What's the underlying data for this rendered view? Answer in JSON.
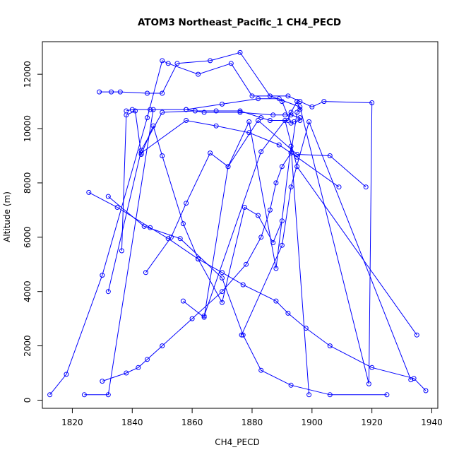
{
  "chart_data": {
    "type": "line",
    "title": "ATOM3 Northeast_Pacific_1 CH4_PECD",
    "xlabel": "CH4_PECD",
    "ylabel": "Altitude (m)",
    "xlim": [
      1810,
      1942
    ],
    "ylim": [
      -300,
      13200
    ],
    "x_ticks": [
      1820,
      1840,
      1860,
      1880,
      1900,
      1920,
      1940
    ],
    "y_ticks": [
      0,
      2000,
      4000,
      6000,
      8000,
      10000,
      12000
    ],
    "grid": false,
    "legend": "none",
    "series_color": "#0000ff",
    "marker": "open-circle",
    "series": [
      {
        "x": [
          1812.5,
          1818,
          1830,
          1845,
          1850,
          1852,
          1862,
          1873,
          1880,
          1892,
          1896,
          1900,
          1904,
          1920,
          1919,
          1896,
          1886,
          1876,
          1866,
          1855,
          1850,
          1845,
          1836,
          1829,
          1833
        ],
        "y": [
          200,
          950,
          4600,
          10400,
          12500,
          12400,
          12000,
          12400,
          11200,
          11200,
          11000,
          10800,
          11000,
          10950,
          600,
          10800,
          11200,
          12800,
          12500,
          12400,
          11300,
          11300,
          11350,
          11350,
          11350
        ]
      },
      {
        "x": [
          1824,
          1832,
          1847,
          1858,
          1864,
          1876,
          1887,
          1891,
          1893,
          1896,
          1896,
          1894,
          1893,
          1890,
          1889,
          1882,
          1870,
          1858,
          1846,
          1840,
          1838
        ],
        "y": [
          200,
          200,
          10700,
          10700,
          10600,
          10600,
          10500,
          10500,
          10500,
          10400,
          10300,
          10250,
          10200,
          11000,
          11100,
          11100,
          10900,
          10700,
          10700,
          10700,
          10650
        ]
      },
      {
        "x": [
          1832,
          1843,
          1850,
          1861,
          1868,
          1876,
          1883,
          1886,
          1892,
          1893,
          1895,
          1896,
          1895,
          1893,
          1890,
          1888,
          1886,
          1883,
          1878,
          1870,
          1860,
          1850,
          1845,
          1842,
          1838,
          1830
        ],
        "y": [
          4000,
          9200,
          10600,
          10650,
          10650,
          10650,
          10400,
          10300,
          10300,
          10600,
          11000,
          10700,
          10600,
          9100,
          8600,
          8000,
          7000,
          6000,
          5000,
          4000,
          3000,
          2000,
          1500,
          1200,
          1000,
          700
        ]
      },
      {
        "x": [
          1825.5,
          1835,
          1846,
          1852,
          1862,
          1870,
          1877,
          1888,
          1892,
          1898,
          1906,
          1920,
          1934,
          1938
        ],
        "y": [
          7650,
          7100,
          6350,
          5950,
          5200,
          4700,
          4250,
          3650,
          3200,
          2650,
          2000,
          1200,
          800,
          350
        ]
      },
      {
        "x": [
          1832,
          1844,
          1856,
          1870,
          1877,
          1883,
          1893,
          1906,
          1925
        ],
        "y": [
          7500,
          6400,
          5950,
          4500,
          2400,
          1100,
          550,
          200,
          200
        ]
      },
      {
        "x": [
          1836.5,
          1838,
          1841,
          1843,
          1847,
          1850,
          1857,
          1862,
          1870,
          1877.5,
          1882,
          1887,
          1890
        ],
        "y": [
          5500,
          10500,
          10650,
          9050,
          10100,
          9000,
          6500,
          5200,
          3600,
          7100,
          6800,
          5800,
          6600
        ]
      },
      {
        "x": [
          1844.5,
          1853,
          1858,
          1866,
          1872,
          1879,
          1888,
          1893,
          1899
        ],
        "y": [
          4700,
          6000,
          7250,
          9100,
          8600,
          10250,
          4850,
          9350,
          200
        ]
      },
      {
        "x": [
          1857,
          1864,
          1872,
          1882,
          1895,
          1906,
          1918
        ],
        "y": [
          3650,
          3050,
          8600,
          10300,
          9050,
          9000,
          7850
        ]
      },
      {
        "x": [
          1843,
          1858,
          1868,
          1879,
          1889,
          1895,
          1909
        ],
        "y": [
          9100,
          10300,
          10100,
          9850,
          9400,
          8950,
          7850
        ]
      },
      {
        "x": [
          1864,
          1883,
          1891,
          1895,
          1935
        ],
        "y": [
          3100,
          9150,
          10300,
          8600,
          2400
        ]
      },
      {
        "x": [
          1876.5,
          1890,
          1893,
          1899,
          1933
        ],
        "y": [
          2400,
          5700,
          7850,
          10250,
          750
        ]
      }
    ]
  }
}
